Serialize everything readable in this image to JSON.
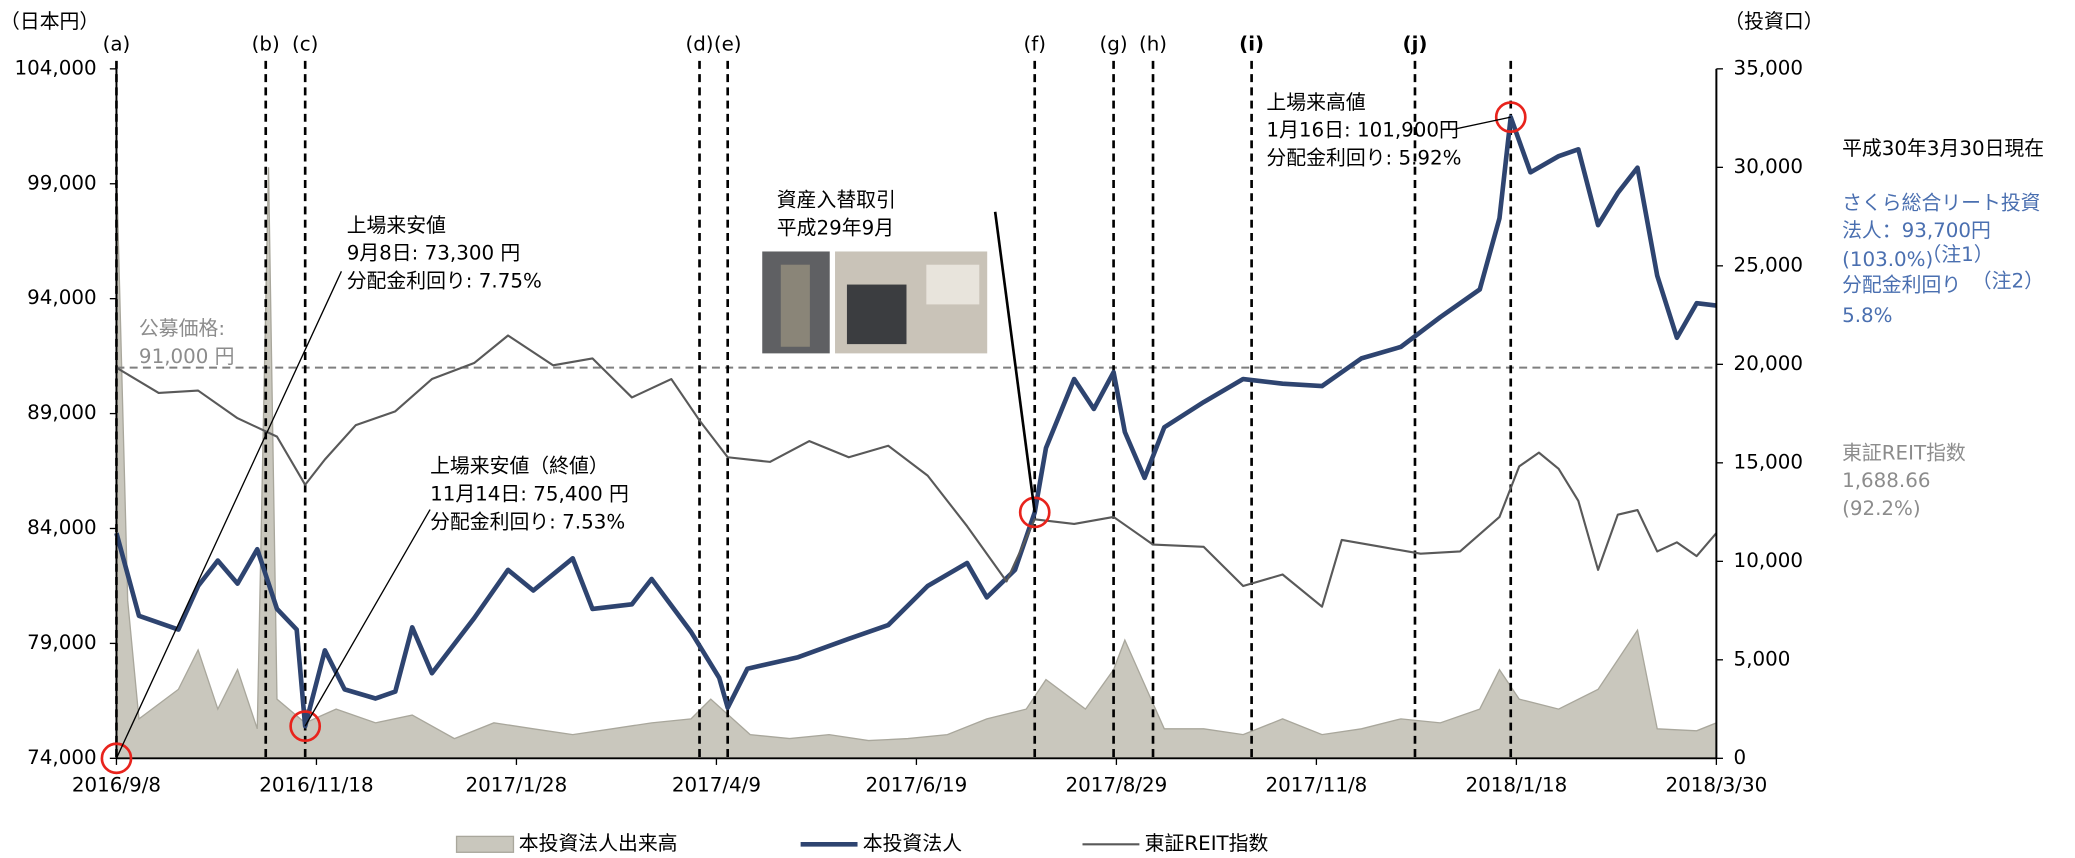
{
  "chart_data": {
    "type": "line",
    "y_axis_title": "（日本円）",
    "y2_axis_title": "（投資口）",
    "xlim": [
      "2016/9/8",
      "2018/3/30"
    ],
    "xticks": [
      "2016/9/8",
      "2016/11/18",
      "2017/1/28",
      "2017/4/9",
      "2017/6/19",
      "2017/8/29",
      "2017/11/8",
      "2018/1/18",
      "2018/3/30"
    ],
    "ylim": [
      74000,
      104000
    ],
    "yticks": [
      {
        "value": 74000,
        "label": "74,000"
      },
      {
        "value": 79000,
        "label": "79,000"
      },
      {
        "value": 84000,
        "label": "84,000"
      },
      {
        "value": 89000,
        "label": "89,000"
      },
      {
        "value": 94000,
        "label": "94,000"
      },
      {
        "value": 99000,
        "label": "99,000"
      },
      {
        "value": 104000,
        "label": "104,000"
      }
    ],
    "y2lim": [
      0,
      35000
    ],
    "y2ticks": [
      0,
      {
        "value": 5000,
        "label": "5,000"
      },
      {
        "value": 10000,
        "label": "10,000"
      },
      {
        "value": 15000,
        "label": "15,000"
      },
      {
        "value": 20000,
        "label": "20,000"
      },
      {
        "value": 25000,
        "label": "25,000"
      },
      {
        "value": 30000,
        "label": "30,000"
      },
      {
        "value": 35000,
        "label": "35,000"
      }
    ],
    "series": [
      {
        "name": "本投資法人出来高",
        "type": "area",
        "axis": "y2",
        "color": "#c9c7bd",
        "x": [
          "2016/9/8",
          "2016/9/12",
          "2016/9/16",
          "2016/9/30",
          "2016/10/7",
          "2016/10/14",
          "2016/10/21",
          "2016/10/28",
          "2016/11/1",
          "2016/11/4",
          "2016/11/14",
          "2016/11/25",
          "2016/12/9",
          "2016/12/22",
          "2017/1/6",
          "2017/1/20",
          "2017/2/3",
          "2017/2/17",
          "2017/3/3",
          "2017/3/17",
          "2017/3/31",
          "2017/4/7",
          "2017/4/21",
          "2017/5/5",
          "2017/5/19",
          "2017/6/2",
          "2017/6/16",
          "2017/6/30",
          "2017/7/14",
          "2017/7/28",
          "2017/8/4",
          "2017/8/18",
          "2017/8/28",
          "2017/9/1",
          "2017/9/15",
          "2017/9/29",
          "2017/10/13",
          "2017/10/27",
          "2017/11/10",
          "2017/11/24",
          "2017/12/8",
          "2017/12/22",
          "2018/1/5",
          "2018/1/12",
          "2018/1/19",
          "2018/2/2",
          "2018/2/16",
          "2018/2/23",
          "2018/3/2",
          "2018/3/9",
          "2018/3/23",
          "2018/3/30"
        ],
        "values": [
          30000,
          8000,
          2000,
          3500,
          5500,
          2500,
          4500,
          1500,
          30000,
          3000,
          1800,
          2500,
          1800,
          2200,
          1000,
          1800,
          1500,
          1200,
          1500,
          1800,
          2000,
          3000,
          1200,
          1000,
          1200,
          900,
          1000,
          1200,
          2000,
          2500,
          4000,
          2500,
          4500,
          6000,
          1500,
          1500,
          1200,
          2000,
          1200,
          1500,
          2000,
          1800,
          2500,
          4500,
          3000,
          2500,
          3500,
          5000,
          6500,
          1500,
          1400,
          1800
        ]
      },
      {
        "name": "本投資法人",
        "color": "#2e4470",
        "x": [
          "2016/9/8",
          "2016/9/16",
          "2016/9/23",
          "2016/9/30",
          "2016/10/7",
          "2016/10/14",
          "2016/10/21",
          "2016/10/28",
          "2016/11/4",
          "2016/11/11",
          "2016/11/14",
          "2016/11/21",
          "2016/11/28",
          "2016/12/9",
          "2016/12/16",
          "2016/12/22",
          "2016/12/29",
          "2017/1/13",
          "2017/1/25",
          "2017/2/3",
          "2017/2/17",
          "2017/2/24",
          "2017/3/10",
          "2017/3/17",
          "2017/3/31",
          "2017/4/10",
          "2017/4/13",
          "2017/4/20",
          "2017/5/8",
          "2017/5/26",
          "2017/6/9",
          "2017/6/23",
          "2017/7/7",
          "2017/7/14",
          "2017/7/24",
          "2017/7/31",
          "2017/8/4",
          "2017/8/14",
          "2017/8/21",
          "2017/8/28",
          "2017/9/1",
          "2017/9/8",
          "2017/9/15",
          "2017/9/29",
          "2017/10/13",
          "2017/10/27",
          "2017/11/10",
          "2017/11/24",
          "2017/12/8",
          "2017/12/22",
          "2018/1/5",
          "2018/1/12",
          "2018/1/16",
          "2018/1/23",
          "2018/2/2",
          "2018/2/9",
          "2018/2/16",
          "2018/2/23",
          "2018/3/2",
          "2018/3/9",
          "2018/3/16",
          "2018/3/23",
          "2018/3/30"
        ],
        "values": [
          83800,
          80200,
          79900,
          79600,
          81500,
          82600,
          81600,
          83100,
          80500,
          79600,
          75400,
          78700,
          77000,
          76600,
          76900,
          79700,
          77700,
          80100,
          82200,
          81300,
          82700,
          80500,
          80700,
          81800,
          79500,
          77500,
          76200,
          77900,
          78400,
          79200,
          79800,
          81500,
          82500,
          81000,
          82200,
          84700,
          87500,
          90500,
          89200,
          90800,
          88200,
          86200,
          88400,
          89500,
          90500,
          90300,
          90200,
          91400,
          91900,
          93200,
          94400,
          97500,
          101900,
          99500,
          100200,
          100500,
          97200,
          98600,
          99700,
          95000,
          92300,
          93800,
          93700
        ]
      },
      {
        "name": "東証REIT指数",
        "color": "#595959",
        "x": [
          "2016/9/8",
          "2016/9/23",
          "2016/10/7",
          "2016/10/21",
          "2016/11/4",
          "2016/11/14",
          "2016/11/21",
          "2016/12/2",
          "2016/12/16",
          "2016/12/29",
          "2017/1/13",
          "2017/1/25",
          "2017/2/10",
          "2017/2/24",
          "2017/3/10",
          "2017/3/24",
          "2017/4/3",
          "2017/4/13",
          "2017/4/28",
          "2017/5/12",
          "2017/5/26",
          "2017/6/9",
          "2017/6/23",
          "2017/7/7",
          "2017/7/21",
          "2017/7/31",
          "2017/8/14",
          "2017/8/28",
          "2017/9/11",
          "2017/9/29",
          "2017/10/13",
          "2017/10/27",
          "2017/11/10",
          "2017/11/17",
          "2017/12/1",
          "2017/12/15",
          "2017/12/29",
          "2018/1/12",
          "2018/1/19",
          "2018/1/26",
          "2018/2/2",
          "2018/2/9",
          "2018/2/16",
          "2018/2/23",
          "2018/3/2",
          "2018/3/9",
          "2018/3/16",
          "2018/3/23",
          "2018/3/30"
        ],
        "values": [
          91000,
          89900,
          90000,
          88800,
          88000,
          85900,
          87000,
          88500,
          89100,
          90500,
          91200,
          92400,
          91100,
          91400,
          89700,
          90500,
          88700,
          87100,
          86900,
          87800,
          87100,
          87600,
          86300,
          84100,
          81700,
          84400,
          84200,
          84500,
          83300,
          83200,
          81500,
          82000,
          80600,
          83500,
          83200,
          82900,
          83000,
          84500,
          86700,
          87300,
          86600,
          85200,
          82200,
          84600,
          84800,
          83000,
          83400,
          82800,
          83800
        ]
      }
    ],
    "reference_line": {
      "value": 91000,
      "title": "公募価格:",
      "label": "91,000 円"
    },
    "events": [
      {
        "label": "(a)",
        "x": "2016/9/8"
      },
      {
        "label": "(b)",
        "x": "2016/10/31"
      },
      {
        "label": "(c)",
        "x": "2016/11/14"
      },
      {
        "label": "(d)",
        "x": "2017/4/3"
      },
      {
        "label": "(e)",
        "x": "2017/4/13"
      },
      {
        "label": "(f)",
        "x": "2017/7/31"
      },
      {
        "label": "(g)",
        "x": "2017/8/28"
      },
      {
        "label": "(h)",
        "x": "2017/9/11"
      },
      {
        "label": "(i)",
        "x": "2017/10/16",
        "bold": true
      },
      {
        "label": "(j)",
        "x": "2017/12/13",
        "bold": true
      },
      {
        "x": "2018/1/16"
      }
    ],
    "highlights": [
      {
        "x": "2016/9/8",
        "y": 74000
      },
      {
        "x": "2016/11/14",
        "y": 75400
      },
      {
        "x": "2017/7/31",
        "y": 84700
      },
      {
        "x": "2018/1/16",
        "y": 101900
      }
    ],
    "annotations": [
      {
        "lines": [
          "上場来安値",
          "9月8日: 73,300 円",
          "分配金利回り: 7.75%"
        ]
      },
      {
        "lines": [
          "上場来安値（終値）",
          "11月14日: 75,400 円",
          "分配金利回り: 7.53%"
        ]
      },
      {
        "lines": [
          "資産入替取引",
          "平成29年9月"
        ]
      },
      {
        "lines": [
          "上場来高値",
          "1月16日: 101,900円",
          "分配金利回り: 5.92%"
        ]
      }
    ],
    "side_note": {
      "date": "平成30年3月30日現在",
      "fund_lines": [
        "さくら総合リート投資",
        "法人：93,700円",
        "(103.0%)",
        "分配金利回り",
        "5.8%"
      ],
      "notes": [
        "（注1）",
        "（注2）"
      ],
      "index_lines": [
        "東証REIT指数",
        "1,688.66",
        "(92.2%)"
      ]
    }
  }
}
